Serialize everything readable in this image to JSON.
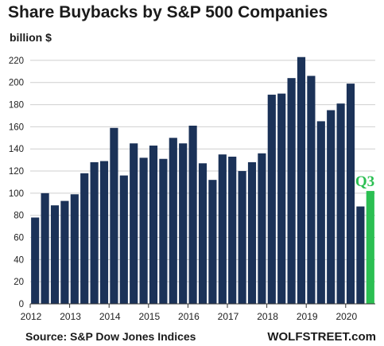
{
  "title": "Share Buybacks by S&P 500 Companies",
  "unit_label": "billion $",
  "source": "Source: S&P Dow Jones Indices",
  "brand": "WOLFSTREET.com",
  "colors": {
    "bar": "#1b3258",
    "highlight": "#2bbf52",
    "grid": "#cfcfcf"
  },
  "chart_data": {
    "type": "bar",
    "title": "Share Buybacks by S&P 500 Companies",
    "ylabel": "billion $",
    "xlabel": "",
    "ylim": [
      0,
      230
    ],
    "yticks": [
      0,
      20,
      40,
      60,
      80,
      100,
      120,
      140,
      160,
      180,
      200,
      220
    ],
    "grid": true,
    "year_labels": [
      "2012",
      "2013",
      "2014",
      "2015",
      "2016",
      "2017",
      "2018",
      "2019",
      "2020"
    ],
    "categories": [
      "2012 Q1",
      "2012 Q2",
      "2012 Q3",
      "2012 Q4",
      "2013 Q1",
      "2013 Q2",
      "2013 Q3",
      "2013 Q4",
      "2014 Q1",
      "2014 Q2",
      "2014 Q3",
      "2014 Q4",
      "2015 Q1",
      "2015 Q2",
      "2015 Q3",
      "2015 Q4",
      "2016 Q1",
      "2016 Q2",
      "2016 Q3",
      "2016 Q4",
      "2017 Q1",
      "2017 Q2",
      "2017 Q3",
      "2017 Q4",
      "2018 Q1",
      "2018 Q2",
      "2018 Q3",
      "2018 Q4",
      "2019 Q1",
      "2019 Q2",
      "2019 Q3",
      "2019 Q4",
      "2020 Q1",
      "2020 Q2",
      "2020 Q3"
    ],
    "values": [
      78,
      100,
      89,
      93,
      99,
      118,
      128,
      129,
      159,
      116,
      145,
      132,
      143,
      131,
      150,
      145,
      161,
      127,
      112,
      135,
      133,
      120,
      128,
      136,
      189,
      190,
      204,
      223,
      206,
      165,
      175,
      181,
      199,
      88,
      102
    ],
    "highlight_index": 34,
    "annotations": [
      {
        "text": "Q3",
        "category": "2020 Q3"
      }
    ]
  }
}
